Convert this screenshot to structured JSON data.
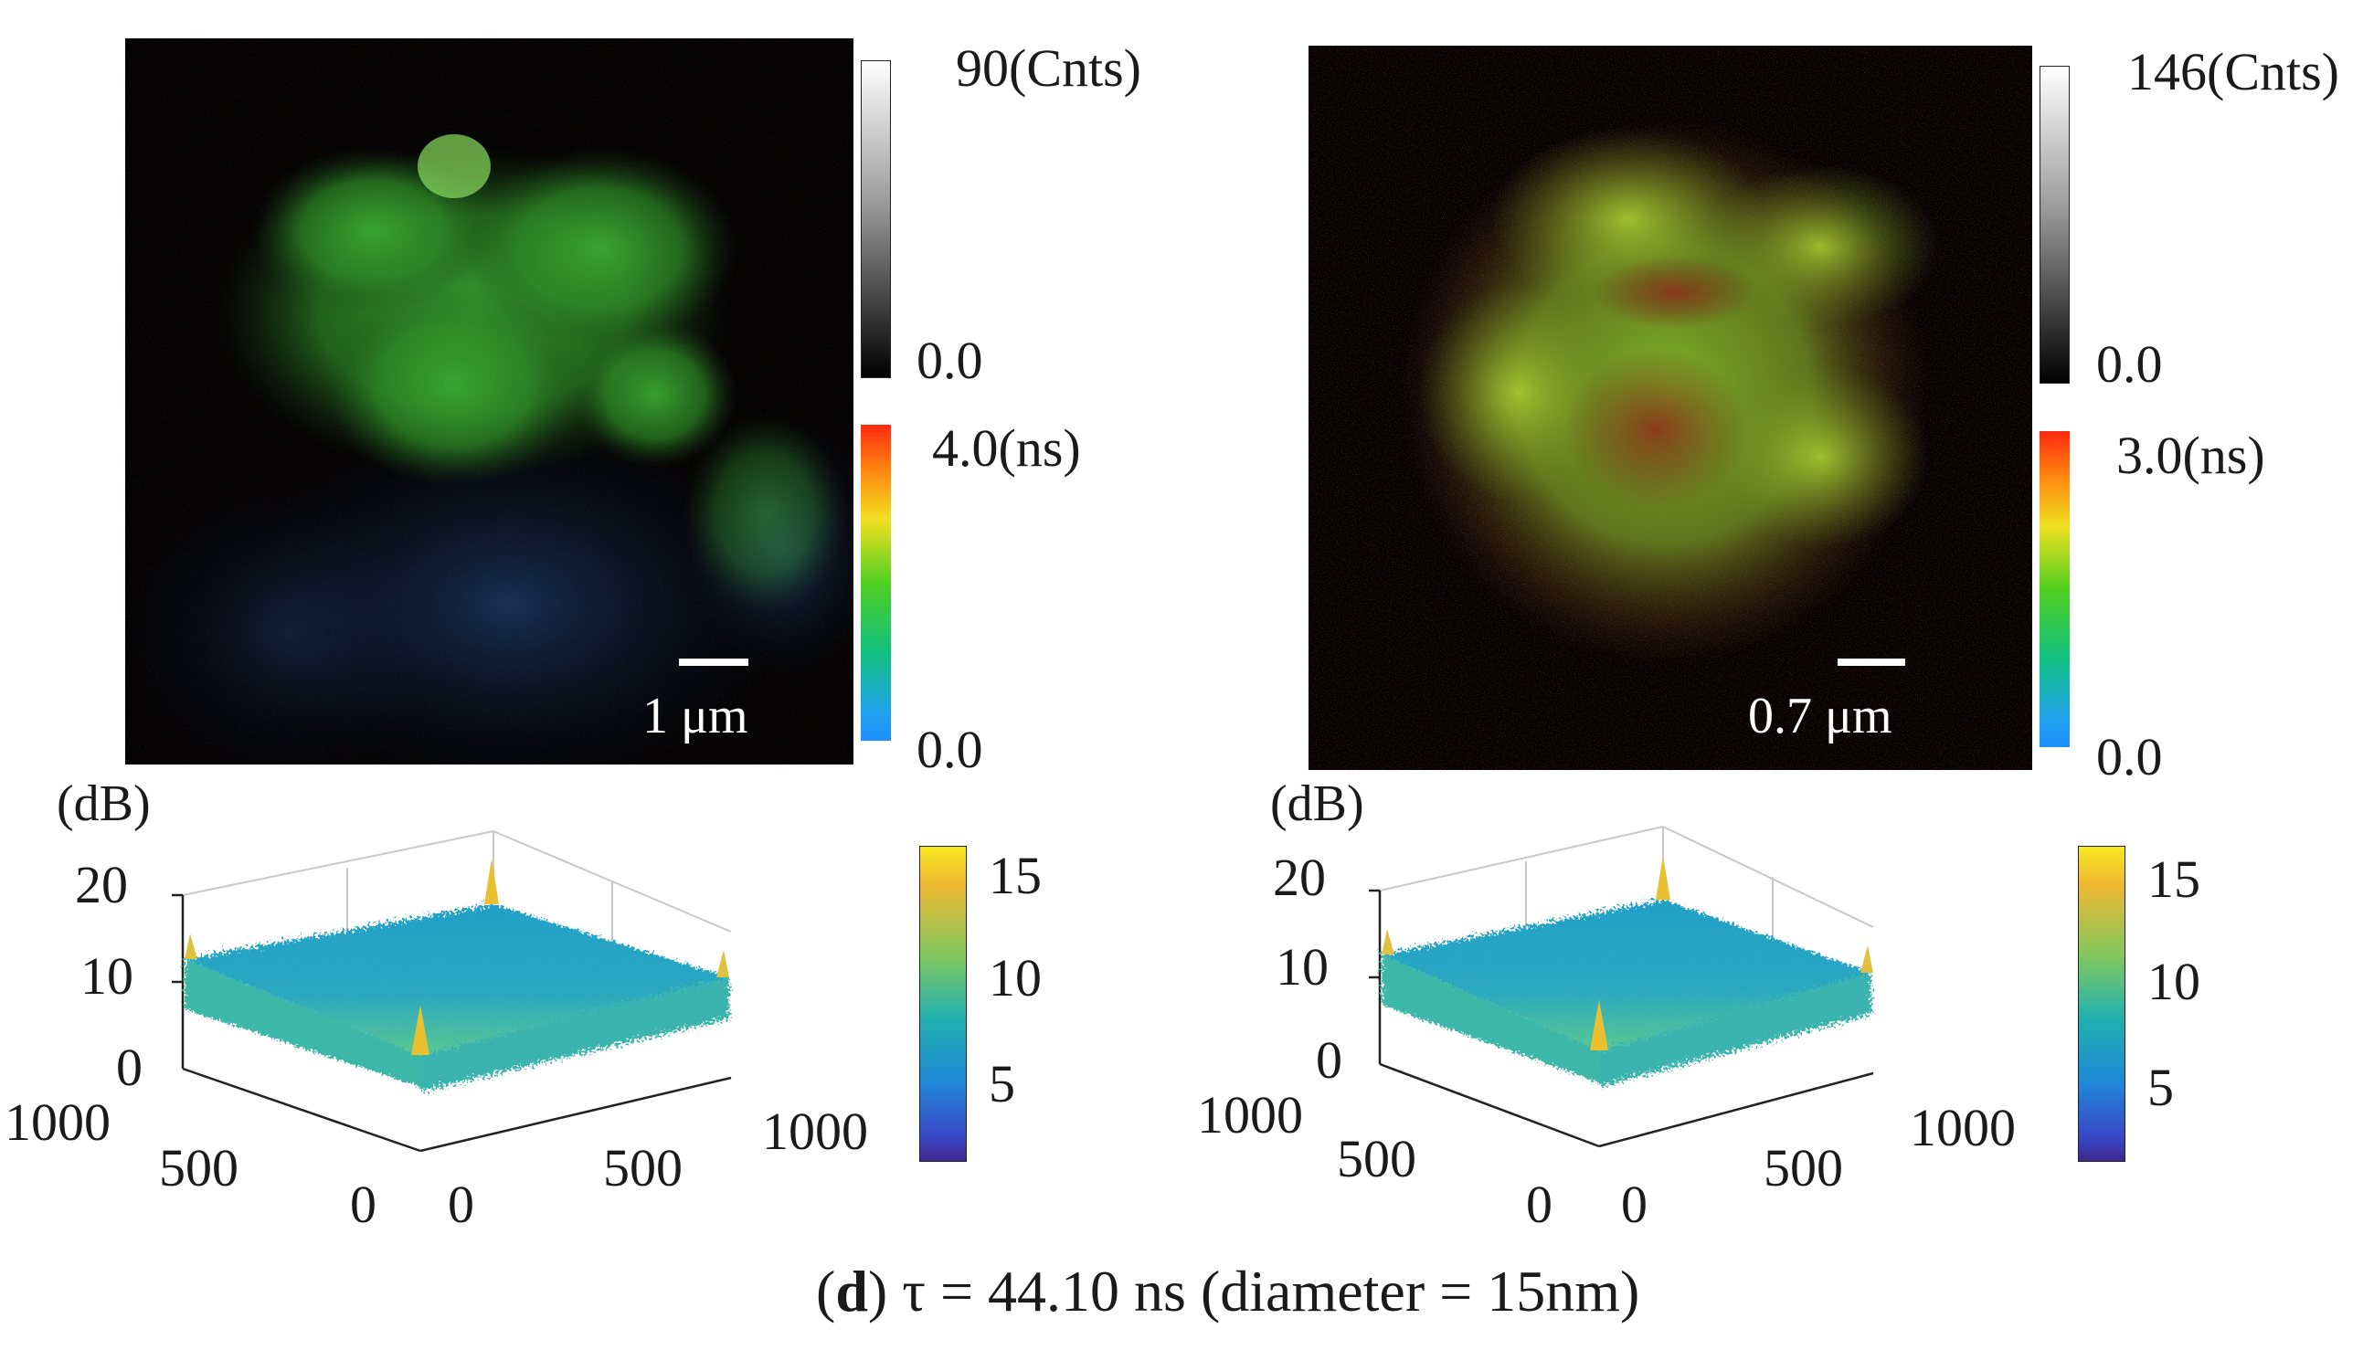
{
  "left_panel": {
    "intensity_scale": {
      "max_label": "90(Cnts)",
      "min_label": "0.0"
    },
    "lifetime_scale": {
      "max_label": "4.0(ns)",
      "min_label": "0.0"
    },
    "scale_bar_label": "1 μm",
    "spectrum": {
      "zlabel": "(dB)",
      "z_ticks": [
        "20",
        "10",
        "0"
      ],
      "x_ticks": [
        "1000",
        "500",
        "0"
      ],
      "y_ticks": [
        "0",
        "500",
        "1000"
      ],
      "colorbar_ticks": [
        "15",
        "10",
        "5"
      ]
    }
  },
  "right_panel": {
    "intensity_scale": {
      "max_label": "146(Cnts)",
      "min_label": "0.0"
    },
    "lifetime_scale": {
      "max_label": "3.0(ns)",
      "min_label": "0.0"
    },
    "scale_bar_label": "0.7 μm",
    "spectrum": {
      "zlabel": "(dB)",
      "z_ticks": [
        "20",
        "10",
        "0"
      ],
      "x_ticks": [
        "1000",
        "500",
        "0"
      ],
      "y_ticks": [
        "0",
        "500",
        "1000"
      ],
      "colorbar_ticks": [
        "15",
        "10",
        "5"
      ]
    }
  },
  "caption": {
    "panel_letter": "d",
    "text": " τ = 44.10 ns (diameter = 15nm)"
  }
}
